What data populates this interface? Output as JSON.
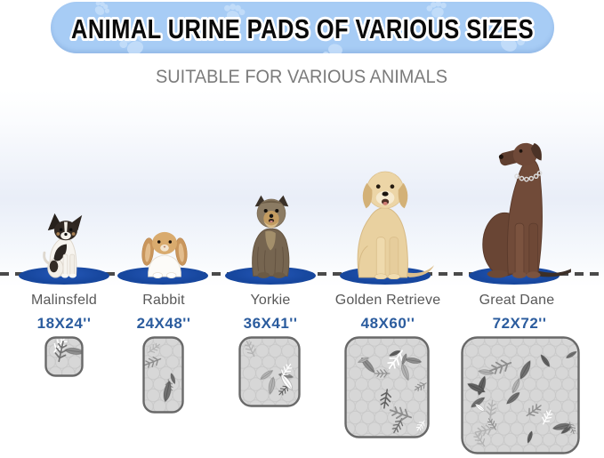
{
  "banner": {
    "title": "ANIMAL URINE PADS OF VARIOUS SIZES"
  },
  "subtitle": "SUITABLE FOR VARIOUS ANIMALS",
  "columns": [
    {
      "animal": "Malinsfeld",
      "size": "18X24''"
    },
    {
      "animal": "Rabbit",
      "size": "24X48''"
    },
    {
      "animal": "Yorkie",
      "size": "36X41''"
    },
    {
      "animal": "Golden Retrieve",
      "size": "48X60''"
    },
    {
      "animal": "Great Dane",
      "size": "72X72''"
    }
  ],
  "icons": {
    "paw_print": "paw-print-icon",
    "leaf_print": "leaf-print-icon"
  },
  "colors": {
    "banner_bg": "#a7ccf5",
    "paw_print": "#c6dffa",
    "headline_text": "#0a0a0a",
    "headline_outline": "#ffffff",
    "subtitle_text": "#7b7b7b",
    "dashed_line": "#4a4a4a",
    "mat_blue": "#17479e",
    "name_text": "#585858",
    "size_text": "#2b5c9e",
    "pad_fill": "#d7d7d7",
    "pad_border": "#696969"
  }
}
